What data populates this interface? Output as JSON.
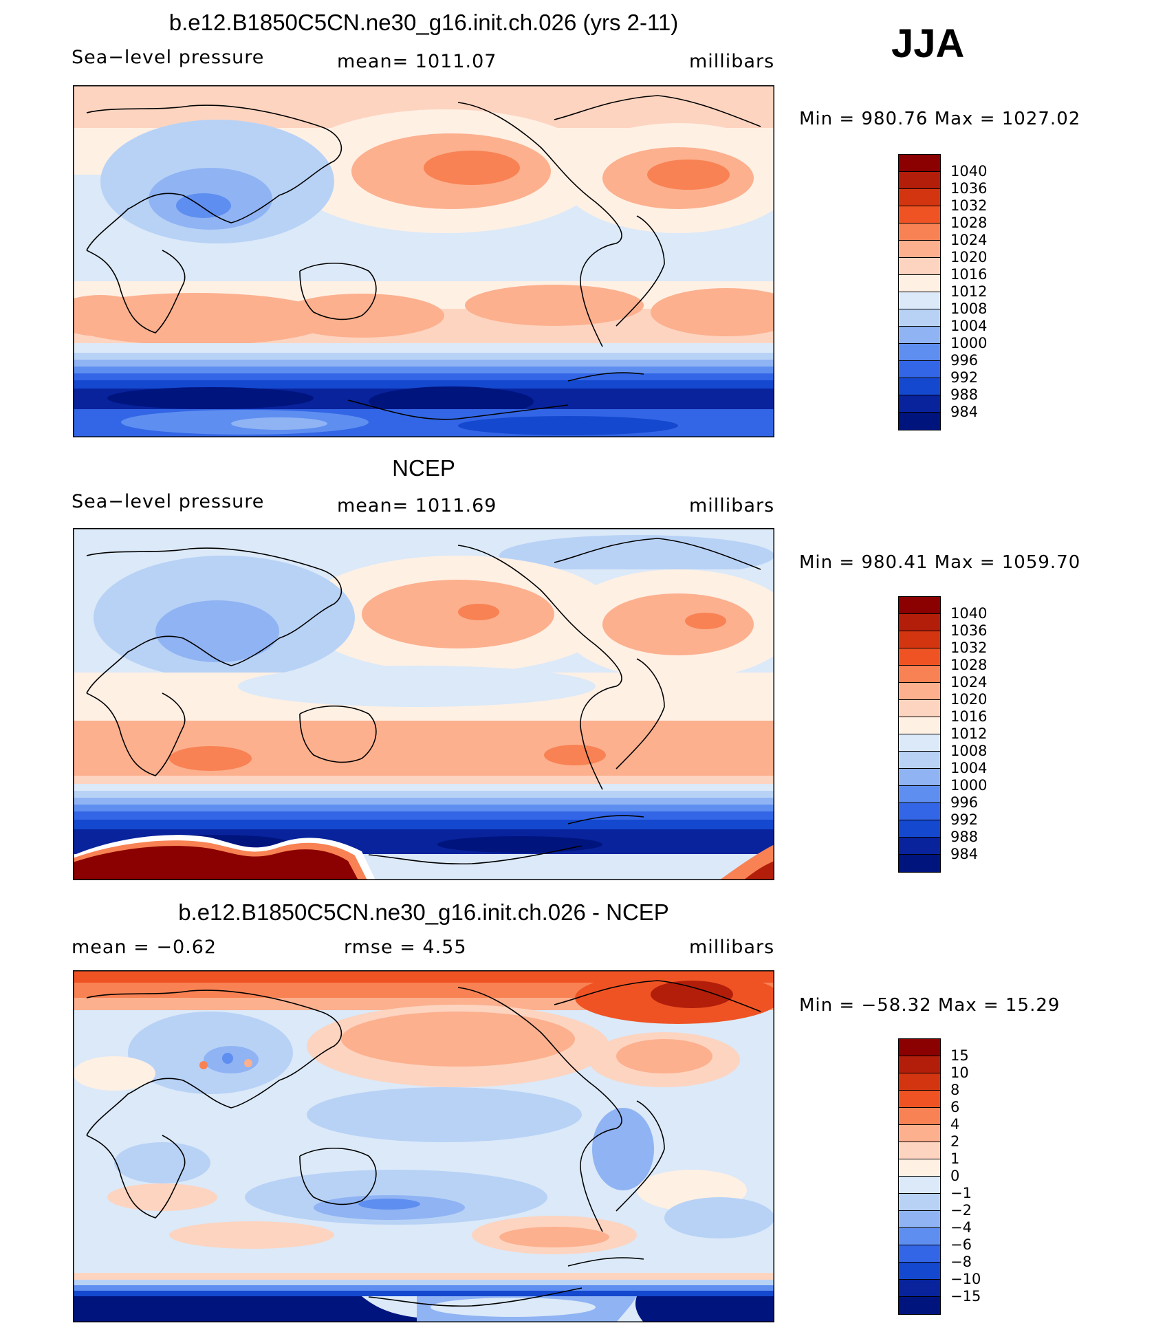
{
  "season": "JJA",
  "panels": [
    {
      "title": "b.e12.B1850C5CN.ne30_g16.init.ch.026 (yrs 2-11)",
      "left": "Sea−level pressure",
      "center": "mean=  1011.07",
      "right": "millibars",
      "minmax": "Min  =  980.76  Max  =  1027.02"
    },
    {
      "title": "NCEP",
      "left": "Sea−level pressure",
      "center": "mean=  1011.69",
      "right": "millibars",
      "minmax": "Min  =  980.41  Max  =  1059.70"
    },
    {
      "title": "b.e12.B1850C5CN.ne30_g16.init.ch.026 - NCEP",
      "left": "mean  =    −0.62",
      "center": "rmse  =     4.55",
      "right": "millibars",
      "minmax": "Min  =  −58.32  Max  =    15.29"
    }
  ],
  "colorbar_abs": {
    "labels": [
      "1040",
      "1036",
      "1032",
      "1028",
      "1024",
      "1020",
      "1016",
      "1012",
      "1008",
      "1004",
      "1000",
      "996",
      "992",
      "988",
      "984"
    ],
    "colors": [
      "#8b0000",
      "#b21e0a",
      "#d33511",
      "#ef5323",
      "#f88254",
      "#fcb08e",
      "#fdd4c0",
      "#fff0e4",
      "#dbe9f8",
      "#b8d2f6",
      "#8fb3f3",
      "#5e8ef0",
      "#3366e6",
      "#1448cf",
      "#08239c",
      "#00147e"
    ]
  },
  "colorbar_diff": {
    "labels": [
      "15",
      "10",
      "8",
      "6",
      "4",
      "2",
      "1",
      "0",
      "−1",
      "−2",
      "−4",
      "−6",
      "−8",
      "−10",
      "−15"
    ],
    "colors": [
      "#8b0000",
      "#b21e0a",
      "#d33511",
      "#ef5323",
      "#f88254",
      "#fcb08e",
      "#fdd4c0",
      "#fff0e4",
      "#dbe9f8",
      "#b8d2f6",
      "#8fb3f3",
      "#5e8ef0",
      "#3366e6",
      "#1448cf",
      "#08239c",
      "#00147e"
    ]
  }
}
